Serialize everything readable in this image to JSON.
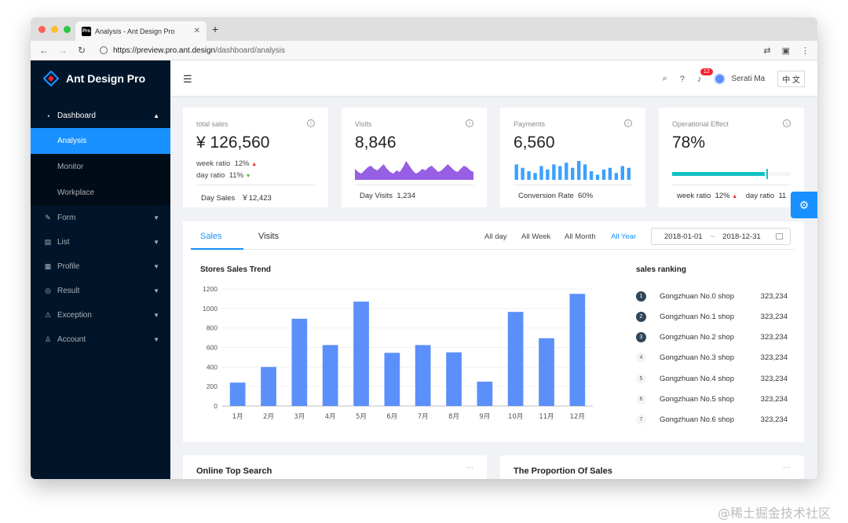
{
  "browser": {
    "tab_title": "Analysis - Ant Design Pro",
    "favicon_text": "Pro",
    "url_host": "https://preview.pro.ant.design",
    "url_path": "/dashboard/analysis"
  },
  "sidebar": {
    "logo_text": "Ant Design Pro",
    "dashboard_label": "Dashboard",
    "sub_items": [
      "Analysis",
      "Monitor",
      "Workplace"
    ],
    "items": [
      "Form",
      "List",
      "Profile",
      "Result",
      "Exception",
      "Account"
    ]
  },
  "header": {
    "notification_count": "12",
    "user_name": "Serati Ma",
    "lang_label": "中 文"
  },
  "stats": {
    "sales": {
      "label": "total sales",
      "value": "¥ 126,560",
      "week_label": "week ratio",
      "week_value": "12%",
      "day_label": "day ratio",
      "day_value": "11%",
      "footer_label": "Day Sales",
      "footer_value": "￥12,423"
    },
    "visits": {
      "label": "Visits",
      "value": "8,846",
      "footer_label": "Day Visits",
      "footer_value": "1,234",
      "area_values": [
        7,
        5,
        4,
        6,
        8,
        9,
        7,
        6,
        8,
        10,
        7,
        5,
        4,
        6,
        5,
        8,
        12,
        9,
        6,
        4,
        5,
        7,
        6,
        8,
        9,
        7,
        5,
        6,
        8,
        10,
        8,
        6,
        5,
        7,
        9,
        8,
        6,
        5
      ]
    },
    "payments": {
      "label": "Payments",
      "value": "6,560",
      "footer_label": "Conversion Rate",
      "footer_value": "60%",
      "bar_values": [
        9,
        7,
        5,
        4,
        8,
        6,
        9,
        8,
        10,
        7,
        11,
        9,
        5,
        3,
        6,
        7,
        4,
        8,
        7
      ]
    },
    "effect": {
      "label": "Operational Effect",
      "value": "78%",
      "progress": 0.78,
      "week_label": "week ratio",
      "week_value": "12%",
      "day_label": "day ratio",
      "day_value": "11"
    }
  },
  "sales_card": {
    "tabs": [
      "Sales",
      "Visits"
    ],
    "periods": [
      "All day",
      "All Week",
      "All Month",
      "All Year"
    ],
    "date_start": "2018-01-01",
    "date_sep": "~",
    "date_end": "2018-12-31",
    "chart_title": "Stores Sales Trend",
    "ranking_title": "sales ranking",
    "ranking": [
      {
        "rank": "1",
        "name": "Gongzhuan No.0 shop",
        "value": "323,234"
      },
      {
        "rank": "2",
        "name": "Gongzhuan No.1 shop",
        "value": "323,234"
      },
      {
        "rank": "3",
        "name": "Gongzhuan No.2 shop",
        "value": "323,234"
      },
      {
        "rank": "4",
        "name": "Gongzhuan No.3 shop",
        "value": "323,234"
      },
      {
        "rank": "5",
        "name": "Gongzhuan No.4 shop",
        "value": "323,234"
      },
      {
        "rank": "6",
        "name": "Gongzhuan No.5 shop",
        "value": "323,234"
      },
      {
        "rank": "7",
        "name": "Gongzhuan No.6 shop",
        "value": "323,234"
      }
    ]
  },
  "chart_data": {
    "type": "bar",
    "title": "Stores Sales Trend",
    "categories": [
      "1月",
      "2月",
      "3月",
      "4月",
      "5月",
      "6月",
      "7月",
      "8月",
      "9月",
      "10月",
      "11月",
      "12月"
    ],
    "values": [
      240,
      400,
      895,
      625,
      1070,
      545,
      625,
      550,
      250,
      965,
      695,
      1150
    ],
    "yticks": [
      0,
      200,
      400,
      600,
      800,
      1000,
      1200
    ],
    "ylim": [
      0,
      1200
    ],
    "bar_color": "#5b8ff9"
  },
  "bottom": {
    "left_title": "Online Top Search",
    "right_title": "The Proportion Of Sales",
    "more": "···"
  },
  "watermark": "@稀土掘金技术社区",
  "colors": {
    "sidebar": "#001529",
    "accent": "#1890ff",
    "progress": "#13c2c2"
  }
}
